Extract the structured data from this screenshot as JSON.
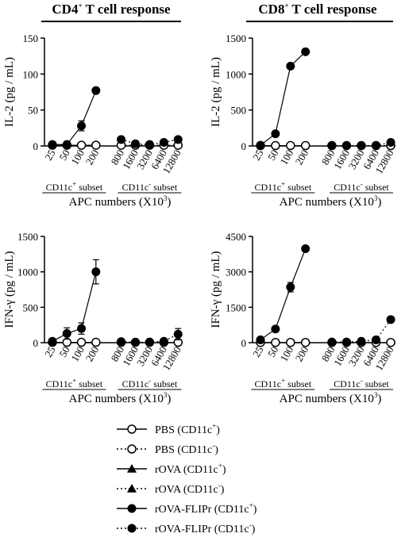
{
  "headers": {
    "left": "CD4",
    "left_sup": "+",
    "left_rest": " T cell response",
    "right": "CD8",
    "right_sup": "+",
    "right_rest": " T cell response"
  },
  "subset_labels": {
    "pos": "CD11c",
    "pos_sup": "+",
    "pos_rest": " subset",
    "neg": "CD11c",
    "neg_sup": "-",
    "neg_rest": " subset"
  },
  "x_axis_label": {
    "text": "APC numbers (X10",
    "sup": "3",
    "close": ")"
  },
  "colors": {
    "ink": "#000000",
    "background": "#ffffff"
  },
  "chart_data": [
    {
      "type": "line",
      "panel": "top-left",
      "ylabel": "IL-2 (pg / mL)",
      "ylim": [
        0,
        150
      ],
      "yticks": [
        0,
        50,
        100,
        150
      ],
      "categories_pos": [
        "25",
        "50",
        "100",
        "200"
      ],
      "categories_neg": [
        "800",
        "1600",
        "3200",
        "6400",
        "12800"
      ],
      "series": [
        {
          "name": "rOVA-FLIPr (CD11c+)",
          "group": "pos",
          "marker": "filled-circle",
          "line": "solid",
          "values": [
            2,
            2,
            28,
            77
          ],
          "errors": [
            0,
            0,
            7,
            0
          ]
        },
        {
          "name": "rOVA-FLIPr (CD11c-)",
          "group": "neg",
          "marker": "filled-circle",
          "line": "dotted",
          "values": [
            9,
            3,
            2,
            5,
            9
          ],
          "errors": [
            0,
            0,
            0,
            0,
            0
          ]
        },
        {
          "name": "PBS (CD11c+)",
          "group": "pos",
          "marker": "open-circle",
          "line": "solid",
          "values": [
            1,
            1,
            1,
            1
          ],
          "errors": [
            0,
            0,
            0,
            0
          ]
        },
        {
          "name": "PBS (CD11c-)",
          "group": "neg",
          "marker": "open-circle",
          "line": "dotted",
          "values": [
            1,
            1,
            1,
            1,
            1
          ],
          "errors": [
            0,
            0,
            0,
            0,
            0
          ]
        }
      ]
    },
    {
      "type": "line",
      "panel": "top-right",
      "ylabel": "IL-2 (pg / mL)",
      "ylim": [
        0,
        1500
      ],
      "yticks": [
        0,
        500,
        1000,
        1500
      ],
      "categories_pos": [
        "25",
        "50",
        "100",
        "200"
      ],
      "categories_neg": [
        "800",
        "1600",
        "3200",
        "6400",
        "12800"
      ],
      "series": [
        {
          "name": "rOVA-FLIPr (CD11c+)",
          "group": "pos",
          "marker": "filled-circle",
          "line": "solid",
          "values": [
            10,
            170,
            1110,
            1310
          ],
          "errors": [
            0,
            0,
            0,
            0
          ]
        },
        {
          "name": "rOVA-FLIPr (CD11c-)",
          "group": "neg",
          "marker": "filled-circle",
          "line": "dotted",
          "values": [
            5,
            5,
            5,
            5,
            50
          ],
          "errors": [
            0,
            0,
            0,
            0,
            0
          ]
        },
        {
          "name": "PBS (CD11c+)",
          "group": "pos",
          "marker": "open-circle",
          "line": "solid",
          "values": [
            5,
            5,
            5,
            5
          ],
          "errors": [
            0,
            0,
            0,
            0
          ]
        },
        {
          "name": "PBS (CD11c-)",
          "group": "neg",
          "marker": "open-circle",
          "line": "dotted",
          "values": [
            5,
            5,
            5,
            5,
            5
          ],
          "errors": [
            0,
            0,
            0,
            0,
            0
          ]
        }
      ]
    },
    {
      "type": "line",
      "panel": "bottom-left",
      "ylabel": "IFN-γ (pg / mL)",
      "ylim": [
        0,
        1500
      ],
      "yticks": [
        0,
        500,
        1000,
        1500
      ],
      "categories_pos": [
        "25",
        "50",
        "100",
        "200"
      ],
      "categories_neg": [
        "800",
        "1600",
        "3200",
        "6400",
        "12800"
      ],
      "series": [
        {
          "name": "rOVA-FLIPr (CD11c+)",
          "group": "pos",
          "marker": "filled-circle",
          "line": "solid",
          "values": [
            20,
            130,
            200,
            1000
          ],
          "errors": [
            20,
            80,
            80,
            170
          ]
        },
        {
          "name": "rOVA-FLIPr (CD11c-)",
          "group": "neg",
          "marker": "filled-circle",
          "line": "dotted",
          "values": [
            15,
            5,
            10,
            20,
            120
          ],
          "errors": [
            0,
            0,
            0,
            20,
            80
          ]
        },
        {
          "name": "PBS (CD11c+)",
          "group": "pos",
          "marker": "open-circle",
          "line": "solid",
          "values": [
            5,
            5,
            5,
            5
          ],
          "errors": [
            0,
            0,
            0,
            0
          ]
        },
        {
          "name": "PBS (CD11c-)",
          "group": "neg",
          "marker": "open-circle",
          "line": "dotted",
          "values": [
            5,
            5,
            5,
            5,
            5
          ],
          "errors": [
            0,
            0,
            0,
            0,
            0
          ]
        }
      ]
    },
    {
      "type": "line",
      "panel": "bottom-right",
      "ylabel": "IFN-γ (pg / mL)",
      "ylim": [
        0,
        4500
      ],
      "yticks": [
        0,
        1500,
        3000,
        4500
      ],
      "categories_pos": [
        "25",
        "50",
        "100",
        "200"
      ],
      "categories_neg": [
        "800",
        "1600",
        "3200",
        "6400",
        "12800"
      ],
      "series": [
        {
          "name": "rOVA-FLIPr (CD11c+)",
          "group": "pos",
          "marker": "filled-circle",
          "line": "solid",
          "values": [
            120,
            580,
            2350,
            3980
          ],
          "errors": [
            0,
            0,
            200,
            0
          ]
        },
        {
          "name": "rOVA-FLIPr (CD11c-)",
          "group": "neg",
          "marker": "filled-circle",
          "line": "dotted",
          "values": [
            30,
            30,
            60,
            120,
            980
          ],
          "errors": [
            0,
            0,
            0,
            0,
            0
          ]
        },
        {
          "name": "PBS (CD11c+)",
          "group": "pos",
          "marker": "open-circle",
          "line": "solid",
          "values": [
            10,
            10,
            10,
            10
          ],
          "errors": [
            0,
            0,
            0,
            0
          ]
        },
        {
          "name": "PBS (CD11c-)",
          "group": "neg",
          "marker": "open-circle",
          "line": "dotted",
          "values": [
            10,
            10,
            10,
            10,
            10
          ],
          "errors": [
            0,
            0,
            0,
            0,
            0
          ]
        }
      ]
    }
  ],
  "legend": [
    {
      "label": "PBS (CD11c",
      "sup": "+",
      "close": ")",
      "marker": "open-circle",
      "line": "solid"
    },
    {
      "label": "PBS (CD11c",
      "sup": "-",
      "close": ")",
      "marker": "open-circle",
      "line": "dotted"
    },
    {
      "label": "rOVA (CD11c",
      "sup": "+",
      "close": ")",
      "marker": "filled-triangle",
      "line": "solid"
    },
    {
      "label": "rOVA (CD11c",
      "sup": "-",
      "close": ")",
      "marker": "filled-triangle",
      "line": "dotted"
    },
    {
      "label": "rOVA-FLIPr (CD11c",
      "sup": "+",
      "close": ")",
      "marker": "filled-circle",
      "line": "solid"
    },
    {
      "label": "rOVA-FLIPr (CD11c",
      "sup": "-",
      "close": ")",
      "marker": "filled-circle",
      "line": "dotted"
    }
  ]
}
